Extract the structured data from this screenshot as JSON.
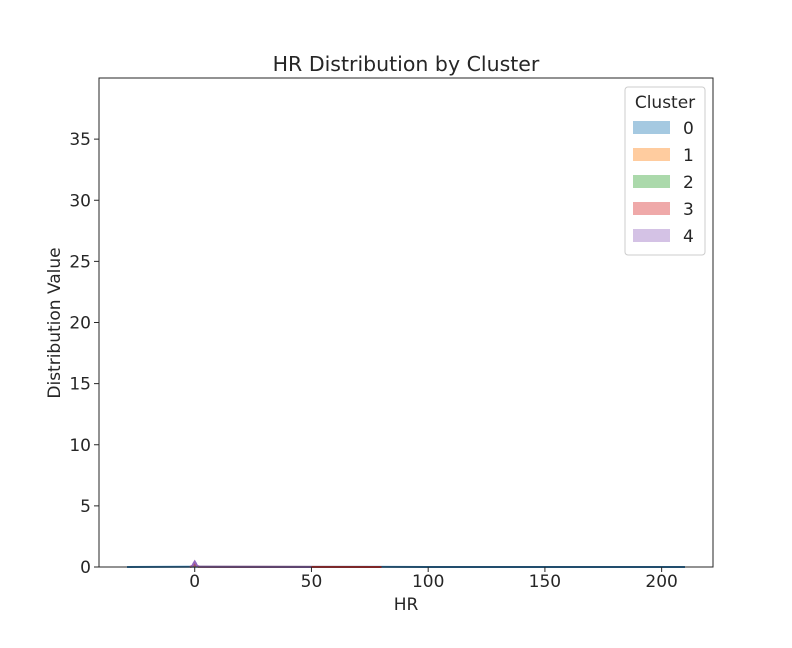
{
  "chart_data": {
    "type": "area",
    "title": "HR Distribution by Cluster",
    "xlabel": "HR",
    "ylabel": "Distribution Value",
    "xlim": [
      -41,
      222
    ],
    "ylim": [
      0,
      40
    ],
    "xticks": [
      0,
      50,
      100,
      150,
      200
    ],
    "yticks": [
      0,
      5,
      10,
      15,
      20,
      25,
      30,
      35
    ],
    "grid": false,
    "legend": {
      "title": "Cluster",
      "placement": "top-right"
    },
    "series": [
      {
        "name": "0",
        "color": "#1f77b4",
        "x": [
          -29,
          0,
          50,
          100,
          150,
          210
        ],
        "y": [
          0.0,
          0.02,
          0.01,
          0.005,
          0.003,
          0.0
        ]
      },
      {
        "name": "1",
        "color": "#ff7f0e",
        "x": [
          -2,
          -1,
          0,
          1,
          2
        ],
        "y": [
          0.0,
          0.05,
          0.15,
          0.05,
          0.0
        ]
      },
      {
        "name": "2",
        "color": "#2ca02c",
        "x": [
          -2,
          -1,
          0,
          1,
          2
        ],
        "y": [
          0.0,
          0.08,
          0.2,
          0.08,
          0.0
        ]
      },
      {
        "name": "3",
        "color": "#d62728",
        "x": [
          -2,
          -1,
          0,
          1,
          2,
          80
        ],
        "y": [
          0.0,
          0.1,
          0.3,
          0.1,
          0.02,
          0.0
        ]
      },
      {
        "name": "4",
        "color": "#9467bd",
        "x": [
          -2,
          -1,
          -0.5,
          0,
          0.5,
          1,
          2,
          50
        ],
        "y": [
          0.0,
          0.1,
          0.3,
          0.45,
          0.3,
          0.1,
          0.02,
          0.0
        ]
      }
    ]
  }
}
